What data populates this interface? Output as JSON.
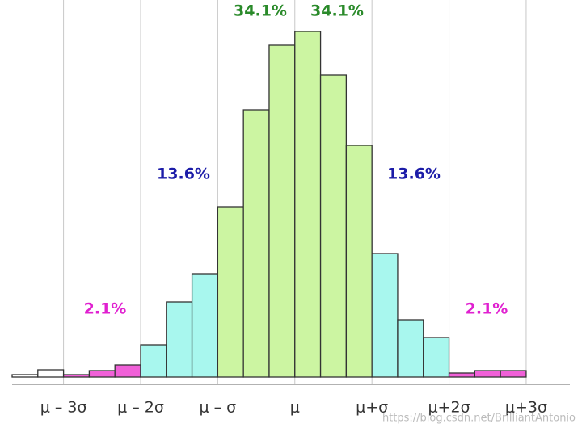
{
  "chart_data": {
    "type": "histogram",
    "bins": [
      -11,
      -10,
      -9,
      -8,
      -7,
      -6,
      -5,
      -4,
      -3,
      -2,
      -1,
      0,
      1,
      2,
      3,
      4,
      5,
      6,
      7,
      8,
      9
    ],
    "values": [
      3,
      9,
      3,
      8,
      15,
      40,
      93,
      128,
      211,
      331,
      411,
      428,
      374,
      287,
      153,
      71,
      49,
      5,
      8,
      8
    ],
    "colors": [
      "#ffffff",
      "#ffffff",
      "#f060d8",
      "#f060d8",
      "#f060d8",
      "#a8f7ee",
      "#a8f7ee",
      "#a8f7ee",
      "#ccf5a2",
      "#ccf5a2",
      "#ccf5a2",
      "#ccf5a2",
      "#ccf5a2",
      "#ccf5a2",
      "#a8f7ee",
      "#a8f7ee",
      "#a8f7ee",
      "#f060d8",
      "#f060d8",
      "#f060d8"
    ],
    "xlim": [
      -11,
      10.7
    ],
    "ylim": [
      0,
      440
    ],
    "xticks": [
      {
        "value": -9,
        "label": "μ – 3σ"
      },
      {
        "value": -6,
        "label": "μ – 2σ"
      },
      {
        "value": -3,
        "label": "μ – σ"
      },
      {
        "value": 0,
        "label": "μ"
      },
      {
        "value": 3,
        "label": "μ+σ"
      },
      {
        "value": 6,
        "label": "μ+2σ"
      },
      {
        "value": 9,
        "label": "μ+3σ"
      }
    ],
    "grid": true,
    "annotations": [
      {
        "text": "34.1%",
        "color": "#2a8a2a"
      },
      {
        "text": "34.1%",
        "color": "#2a8a2a"
      },
      {
        "text": "13.6%",
        "color": "#1c1ca8"
      },
      {
        "text": "13.6%",
        "color": "#1c1ca8"
      },
      {
        "text": "2.1%",
        "color": "#e020d0"
      },
      {
        "text": "2.1%",
        "color": "#e020d0"
      }
    ],
    "watermark": "https://blog.csdn.net/BrilliantAntonio"
  }
}
